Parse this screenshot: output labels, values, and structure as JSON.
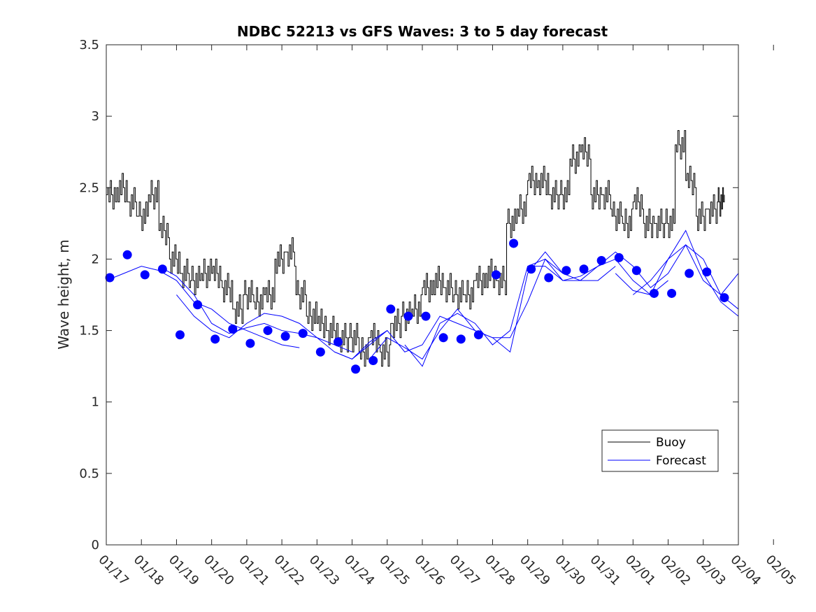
{
  "chart_data": {
    "type": "line",
    "title": "NDBC 52213 vs GFS Waves: 3 to 5 day forecast",
    "xlabel": "",
    "ylabel": "Wave height, m",
    "ylim": [
      0,
      3.5
    ],
    "xlim": [
      0,
      18
    ],
    "yticks": [
      0,
      0.5,
      1,
      1.5,
      2,
      2.5,
      3,
      3.5
    ],
    "ytick_labels": [
      "0",
      "0.5",
      "1",
      "1.5",
      "2",
      "2.5",
      "3",
      "3.5"
    ],
    "xtick_labels": [
      "01/17",
      "01/18",
      "01/19",
      "01/20",
      "01/21",
      "01/22",
      "01/23",
      "01/24",
      "01/25",
      "01/26",
      "01/27",
      "01/28",
      "01/29",
      "01/30",
      "01/31",
      "02/01",
      "02/02",
      "02/03",
      "02/04",
      "02/05"
    ],
    "legend": {
      "position": "lower-right",
      "entries": [
        "Buoy",
        "Forecast"
      ]
    },
    "colors": {
      "buoy": "#000000",
      "forecast": "#0000ff",
      "dots": "#0000ff"
    },
    "series": [
      {
        "name": "Buoy",
        "style": "step-line",
        "x": [
          0,
          0.3,
          0.6,
          0.9,
          1.2,
          1.5,
          1.8,
          2.1,
          2.4,
          2.7,
          3.0,
          3.3,
          3.6,
          3.9,
          4.2,
          4.5,
          4.8,
          5.1,
          5.4,
          5.7,
          6.0,
          6.3,
          6.6,
          6.9,
          7.2,
          7.5,
          7.8,
          8.1,
          8.4,
          8.7,
          9.0,
          9.3,
          9.6,
          9.9,
          10.2,
          10.5,
          10.8,
          11.1,
          11.4,
          11.7,
          12.0,
          12.3,
          12.6,
          12.9,
          13.2,
          13.5,
          13.8,
          14.1,
          14.4,
          14.7,
          15.0,
          15.3,
          15.6,
          15.9,
          16.2,
          16.5,
          16.8,
          17.1,
          17.4,
          17.6
        ],
        "values": [
          2.45,
          2.5,
          2.4,
          2.3,
          2.45,
          2.2,
          2.0,
          1.9,
          1.85,
          1.9,
          1.9,
          1.8,
          1.65,
          1.75,
          1.7,
          1.75,
          2.0,
          2.05,
          1.75,
          1.6,
          1.55,
          1.5,
          1.45,
          1.45,
          1.35,
          1.45,
          1.35,
          1.55,
          1.6,
          1.65,
          1.8,
          1.85,
          1.8,
          1.75,
          1.75,
          1.85,
          1.9,
          1.85,
          2.25,
          2.35,
          2.55,
          2.55,
          2.45,
          2.45,
          2.7,
          2.75,
          2.45,
          2.45,
          2.3,
          2.25,
          2.4,
          2.25,
          2.25,
          2.25,
          2.8,
          2.55,
          2.3,
          2.35,
          2.4,
          2.45
        ]
      },
      {
        "name": "Forecast",
        "x": [
          0,
          0.5,
          1.0,
          1.5,
          2.0,
          2.5,
          3.0,
          3.5,
          4.0,
          4.5,
          5.0,
          5.5
        ],
        "values": [
          1.85,
          1.9,
          1.95,
          1.92,
          1.85,
          1.7,
          1.65,
          1.55,
          1.5,
          1.45,
          1.4,
          1.38
        ]
      },
      {
        "name": "Forecast",
        "x": [
          1.5,
          2.0,
          2.5,
          3.0,
          3.5,
          4.0,
          4.5,
          5.0,
          5.5,
          6.0,
          6.5,
          7.0
        ],
        "values": [
          1.95,
          1.88,
          1.75,
          1.55,
          1.48,
          1.52,
          1.55,
          1.5,
          1.48,
          1.45,
          1.4,
          1.35
        ]
      },
      {
        "name": "Forecast",
        "x": [
          2.0,
          2.5,
          3.0,
          3.5,
          4.0,
          4.5,
          5.0,
          5.5,
          6.0,
          6.5,
          7.0,
          7.5,
          8.0
        ],
        "values": [
          1.75,
          1.6,
          1.5,
          1.45,
          1.55,
          1.62,
          1.6,
          1.55,
          1.45,
          1.35,
          1.3,
          1.4,
          1.5
        ]
      },
      {
        "name": "Forecast",
        "x": [
          6.5,
          7.0,
          7.5,
          8.0,
          8.5,
          9.0,
          9.5,
          10.0,
          10.5,
          11.0,
          11.5,
          12.0,
          12.5,
          13.0
        ],
        "values": [
          1.35,
          1.3,
          1.42,
          1.5,
          1.35,
          1.4,
          1.6,
          1.55,
          1.5,
          1.45,
          1.45,
          1.7,
          2.0,
          1.9
        ]
      },
      {
        "name": "Forecast",
        "x": [
          7.5,
          8.0,
          8.5,
          9.0,
          9.5,
          10.0,
          10.5,
          11.0,
          11.5,
          12.0,
          12.5,
          13.0,
          13.5,
          14.0,
          14.5
        ],
        "values": [
          1.3,
          1.45,
          1.38,
          1.3,
          1.5,
          1.65,
          1.5,
          1.45,
          1.35,
          1.9,
          2.05,
          1.9,
          1.85,
          1.85,
          1.95
        ]
      },
      {
        "name": "Forecast",
        "x": [
          8.5,
          9.0,
          9.5,
          10.0,
          10.5,
          11.0,
          11.5,
          12.0,
          12.5,
          13.0,
          13.5,
          14.0,
          14.5,
          15.0,
          15.5,
          16.0
        ],
        "values": [
          1.4,
          1.25,
          1.55,
          1.62,
          1.55,
          1.4,
          1.5,
          1.95,
          2.0,
          1.85,
          1.88,
          1.95,
          2.0,
          1.85,
          1.75,
          1.85
        ]
      },
      {
        "name": "Forecast",
        "x": [
          12.0,
          12.5,
          13.0,
          13.5,
          14.0,
          14.5,
          15.0,
          15.5,
          16.0,
          16.5,
          17.0,
          17.5,
          18.0
        ],
        "values": [
          1.95,
          1.95,
          1.85,
          1.85,
          1.95,
          2.05,
          1.95,
          1.8,
          1.9,
          2.1,
          2.0,
          1.75,
          1.65
        ]
      },
      {
        "name": "Forecast",
        "x": [
          14.5,
          15.0,
          15.5,
          16.0,
          16.5,
          17.0,
          17.5,
          18.0
        ],
        "values": [
          1.9,
          1.78,
          1.75,
          2.0,
          2.2,
          1.9,
          1.7,
          1.6
        ]
      },
      {
        "name": "Forecast",
        "x": [
          15.0,
          15.5,
          16.0,
          16.5,
          17.0,
          17.5,
          18.0
        ],
        "values": [
          1.75,
          1.85,
          2.0,
          2.1,
          1.85,
          1.75,
          1.9
        ]
      },
      {
        "name": "Forecast points",
        "style": "markers",
        "x": [
          0.1,
          0.6,
          1.1,
          1.6,
          2.1,
          2.6,
          3.1,
          3.6,
          4.1,
          4.6,
          5.1,
          5.6,
          6.1,
          6.6,
          7.1,
          7.6,
          8.1,
          8.6,
          9.1,
          9.6,
          10.1,
          10.6,
          11.1,
          11.6,
          12.1,
          12.6,
          13.1,
          13.6,
          14.1,
          14.6,
          15.1,
          15.6,
          16.1,
          16.6,
          17.1,
          17.6
        ],
        "values": [
          1.87,
          2.03,
          1.89,
          1.93,
          1.47,
          1.68,
          1.44,
          1.51,
          1.41,
          1.5,
          1.46,
          1.48,
          1.35,
          1.42,
          1.23,
          1.29,
          1.65,
          1.6,
          1.6,
          1.45,
          1.44,
          1.47,
          1.89,
          2.11,
          1.93,
          1.87,
          1.92,
          1.93,
          1.99,
          2.01,
          1.92,
          1.76,
          1.76,
          1.9,
          1.91,
          1.73
        ]
      }
    ]
  }
}
